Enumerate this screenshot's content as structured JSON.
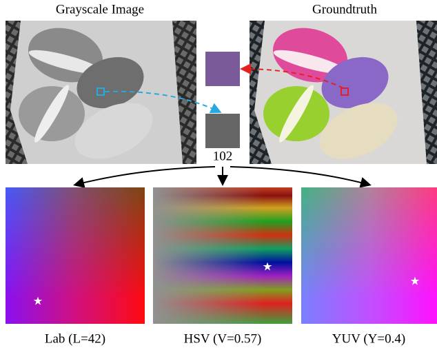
{
  "header": {
    "left_title": "Grayscale Image",
    "right_title": "Groundtruth"
  },
  "gray_value": 102,
  "panels": [
    {
      "label": "Lab (L=42)"
    },
    {
      "label": "HSV (V=0.57)"
    },
    {
      "label": "YUV (Y=0.4)"
    }
  ]
}
